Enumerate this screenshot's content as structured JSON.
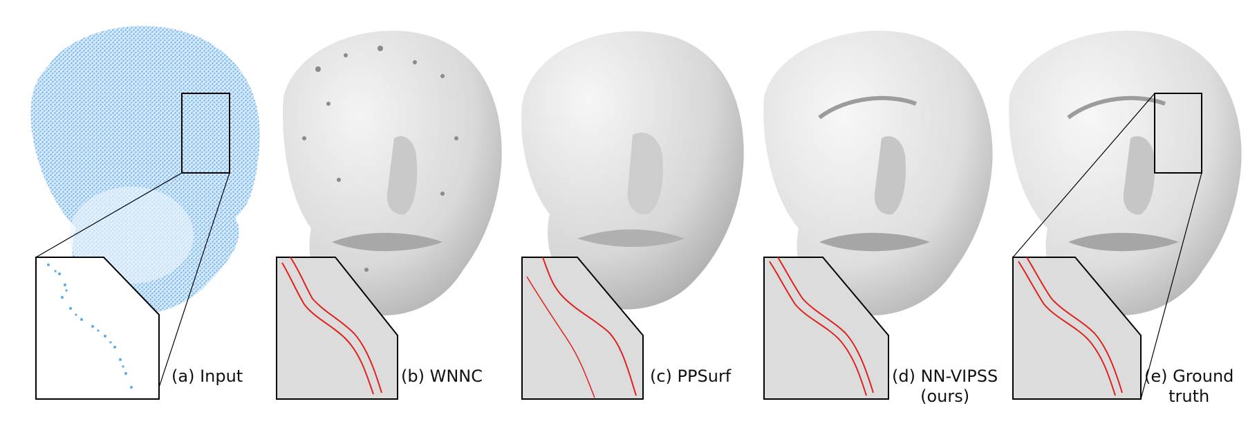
{
  "figure": {
    "panels": [
      {
        "id": "a",
        "caption_lines": [
          "(a) Input"
        ]
      },
      {
        "id": "b",
        "caption_lines": [
          "(b) WNNC"
        ]
      },
      {
        "id": "c",
        "caption_lines": [
          "(c) PPSurf"
        ]
      },
      {
        "id": "d",
        "caption_lines": [
          "(d) NN-VIPSS",
          "(ours)"
        ]
      },
      {
        "id": "e",
        "caption_lines": [
          "(e) Ground",
          "truth"
        ]
      }
    ],
    "colors": {
      "point_cloud": "#5aa9ea",
      "surface": "#e2e2e2",
      "surface_shadow": "#b9b9b9",
      "highlight_curve": "#e0201c",
      "frame": "#000000"
    }
  }
}
